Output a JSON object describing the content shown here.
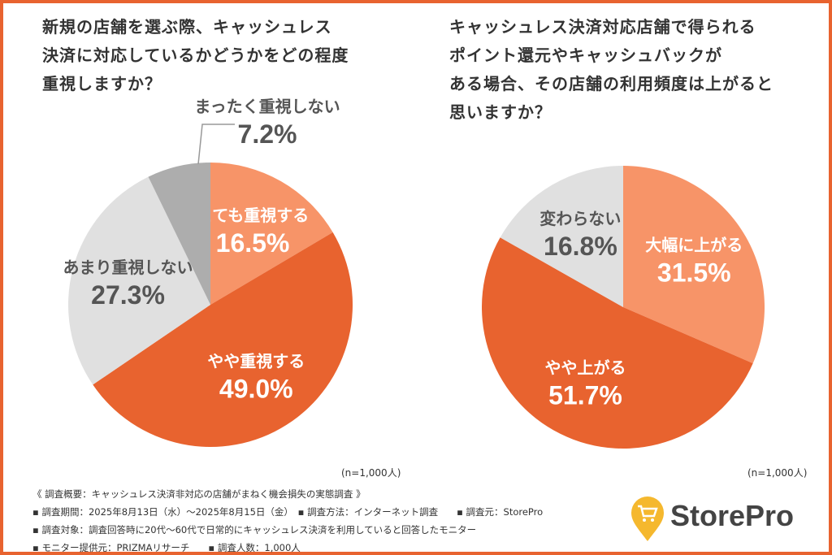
{
  "chart_data": [
    {
      "type": "pie",
      "title": "新規の店舗を選ぶ際、キャッシュレス決済に対応しているかどうかをどの程度重視しますか？",
      "slices": [
        {
          "label": "とても重視する",
          "value": 16.5,
          "display": "16.5%",
          "color": "#F79468"
        },
        {
          "label": "やや重視する",
          "value": 49.0,
          "display": "49.0%",
          "color": "#E8632F"
        },
        {
          "label": "あまり重視しない",
          "value": 27.3,
          "display": "27.3%",
          "color": "#E0E0E0"
        },
        {
          "label": "まったく重視しない",
          "value": 7.2,
          "display": "7.2%",
          "color": "#ADADAD"
        }
      ],
      "note": "(n=1,000人)"
    },
    {
      "type": "pie",
      "title": "キャッシュレス決済対応店舗で得られるポイント還元やキャッシュバックがある場合、その店舗の利用頻度は上がると思いますか？",
      "slices": [
        {
          "label": "大幅に上がる",
          "value": 31.5,
          "display": "31.5%",
          "color": "#F79468"
        },
        {
          "label": "やや上がる",
          "value": 51.7,
          "display": "51.7%",
          "color": "#E8632F"
        },
        {
          "label": "変わらない",
          "value": 16.8,
          "display": "16.8%",
          "color": "#E0E0E0"
        }
      ],
      "note": "(n=1,000人)"
    }
  ],
  "titles": {
    "left": [
      "新規の店舗を選ぶ際、キャッシュレス",
      "決済に対応しているかどうかをどの程度",
      "重視しますか？"
    ],
    "right": [
      "キャッシュレス決済対応店舗で得られる",
      "ポイント還元やキャッシュバックが",
      "ある場合、その店舗の利用頻度は上がると",
      "思いますか？"
    ]
  },
  "footer": [
    "《 調査概要：キャッシュレス決済非対応の店舗がまねく機会損失の実態調査 》",
    "▪ 調査期間：2025年8月13日（水）～2025年8月15日（金）　▪ 調査方法：インターネット調査　　▪ 調査元：StorePro",
    "▪ 調査対象：調査回答時に20代～60代で日常的にキャッシュレス決済を利用していると回答したモニター",
    "▪ モニター提供元：PRIZMAリサーチ　　▪ 調査人数：1,000人"
  ],
  "logo": {
    "text": "StorePro",
    "icon": "shopping-cart-pin-icon",
    "color": "#F5B82E"
  }
}
